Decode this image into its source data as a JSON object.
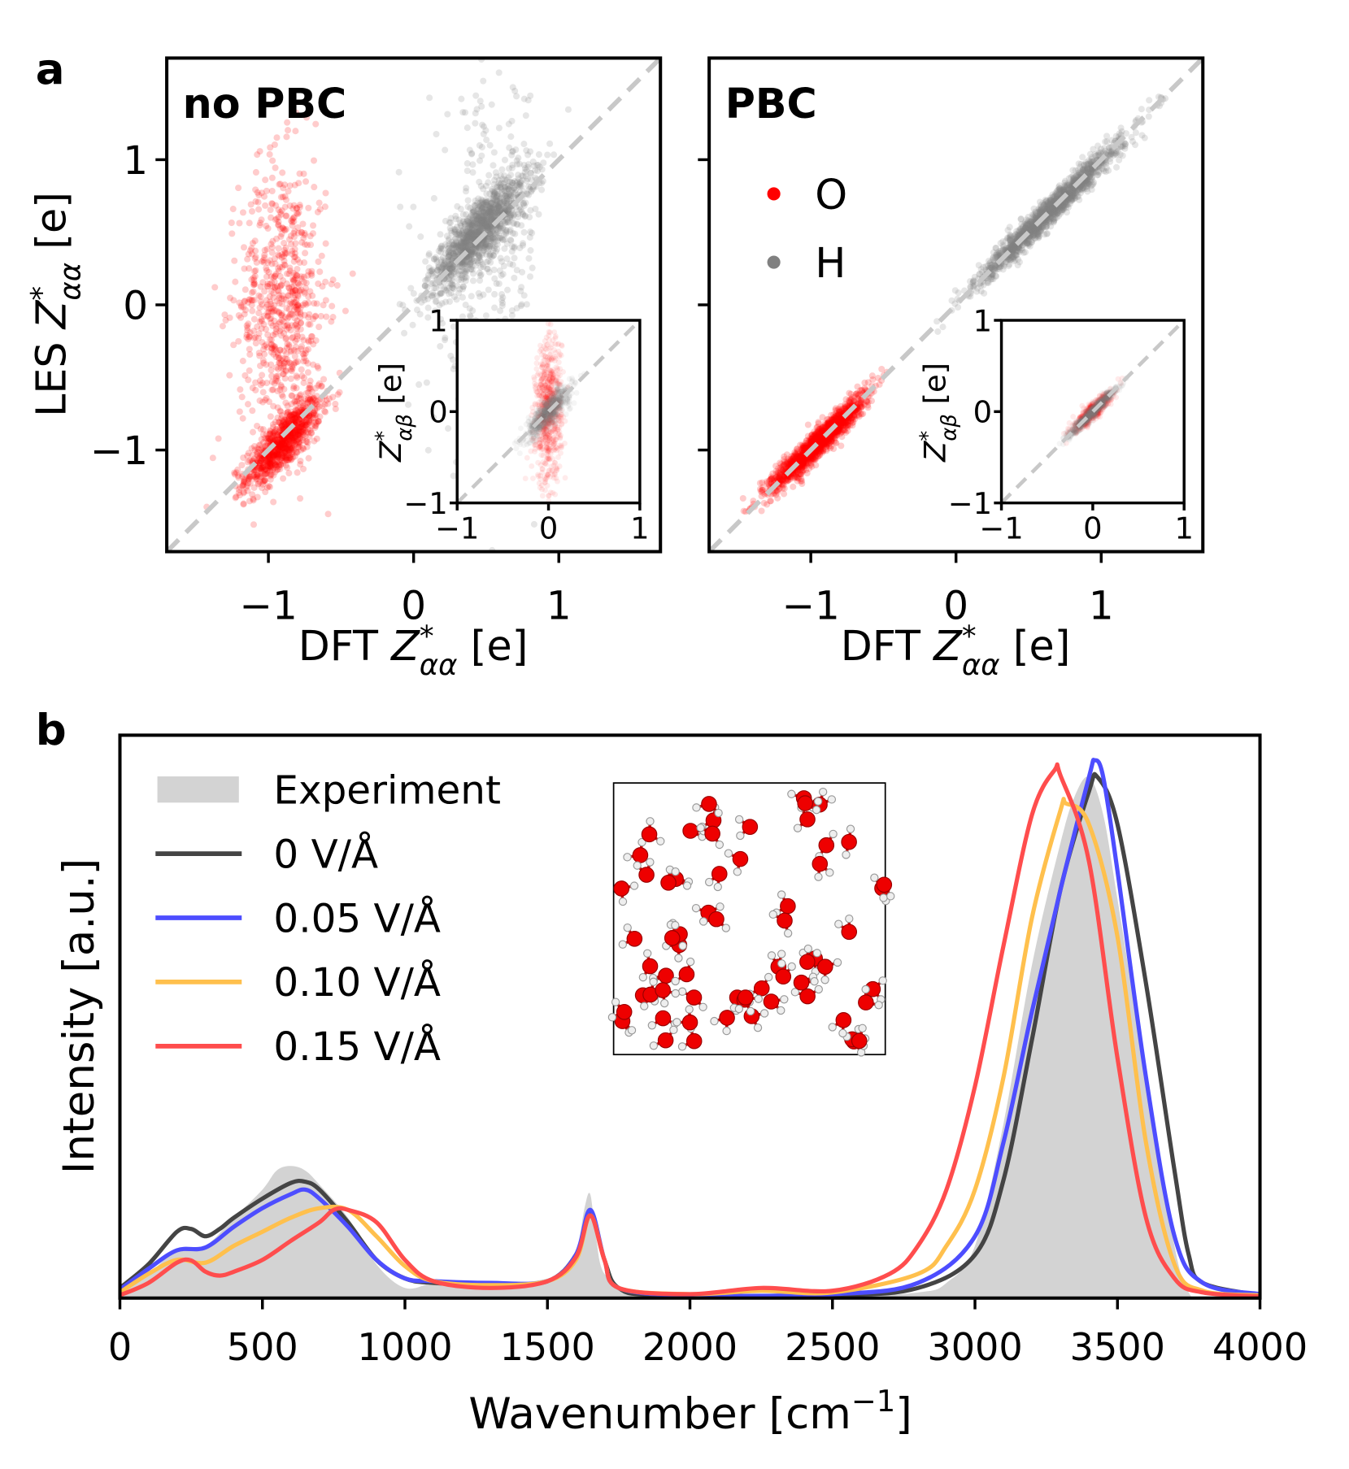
{
  "panel_a_label": "a",
  "panel_b_label": "b",
  "chart_data": [
    {
      "type": "scatter",
      "title": "no PBC",
      "xlabel": "DFT Z*αα [e]",
      "ylabel": "LES Z*αα [e]",
      "xlim": [
        -1.7,
        1.7
      ],
      "ylim": [
        -1.7,
        1.7
      ],
      "xticks": [
        "−1",
        "0",
        "1"
      ],
      "yticks": [
        "−1",
        "0",
        "1"
      ],
      "reference_line": "y = x (dashed, light gray)",
      "grid": false,
      "series": [
        {
          "name": "O",
          "color": "#ff0000",
          "clusters": [
            {
              "x_mean": -0.9,
              "y_mean": -0.95,
              "x_std": 0.13,
              "y_std": 0.15,
              "corr": 0.8,
              "fraction": 0.55
            },
            {
              "x_mean": -0.9,
              "y_mean": 0.0,
              "x_std": 0.15,
              "y_std": 0.5,
              "corr": 0.0,
              "fraction": 0.45
            }
          ]
        },
        {
          "name": "H",
          "color": "#808080",
          "clusters": [
            {
              "x_mean": 0.45,
              "y_mean": 0.5,
              "x_std": 0.17,
              "y_std": 0.2,
              "corr": 0.85,
              "fraction": 0.8
            },
            {
              "x_mean": 0.5,
              "y_mean": 0.3,
              "x_std": 0.2,
              "y_std": 0.6,
              "corr": 0.2,
              "fraction": 0.2
            }
          ]
        }
      ],
      "inset": {
        "xlim": [
          -1,
          1
        ],
        "ylim": [
          -1,
          1
        ],
        "xticks": [
          "−1",
          "0",
          "1"
        ],
        "yticks": [
          "−1",
          "0",
          "1"
        ],
        "ylabel": "Z*αβ [e]",
        "series": [
          {
            "name": "O",
            "color": "#ff0000",
            "clusters": [
              {
                "x_mean": 0.0,
                "y_mean": 0.0,
                "x_std": 0.07,
                "y_std": 0.4,
                "corr": 0.1,
                "fraction": 1
              }
            ]
          },
          {
            "name": "H",
            "color": "#808080",
            "clusters": [
              {
                "x_mean": 0.0,
                "y_mean": 0.0,
                "x_std": 0.12,
                "y_std": 0.14,
                "corr": 0.85,
                "fraction": 1
              }
            ]
          }
        ]
      }
    },
    {
      "type": "scatter",
      "title": "PBC",
      "xlabel": "DFT Z*αα [e]",
      "ylabel": "",
      "xlim": [
        -1.7,
        1.7
      ],
      "ylim": [
        -1.7,
        1.7
      ],
      "xticks": [
        "−1",
        "0",
        "1"
      ],
      "yticks": [],
      "reference_line": "y = x (dashed, light gray)",
      "legend": {
        "placement": "upper-left",
        "entries": [
          {
            "label": "O",
            "color": "#ff0000"
          },
          {
            "label": "H",
            "color": "#808080"
          }
        ]
      },
      "grid": false,
      "series": [
        {
          "name": "O",
          "color": "#ff0000",
          "clusters": [
            {
              "x_mean": -0.95,
              "y_mean": -0.95,
              "x_std": 0.16,
              "y_std": 0.16,
              "corr": 0.95,
              "fraction": 1
            }
          ]
        },
        {
          "name": "H",
          "color": "#808080",
          "clusters": [
            {
              "x_mean": 0.65,
              "y_mean": 0.65,
              "x_std": 0.24,
              "y_std": 0.24,
              "corr": 0.98,
              "fraction": 1
            }
          ]
        }
      ],
      "inset": {
        "xlim": [
          -1,
          1
        ],
        "ylim": [
          -1,
          1
        ],
        "xticks": [
          "−1",
          "0",
          "1"
        ],
        "yticks": [
          "−1",
          "0",
          "1"
        ],
        "ylabel": "Z*αβ [e]",
        "series": [
          {
            "name": "O",
            "color": "#ff0000",
            "clusters": [
              {
                "x_mean": 0.0,
                "y_mean": 0.0,
                "x_std": 0.1,
                "y_std": 0.1,
                "corr": 0.9,
                "fraction": 1
              }
            ]
          },
          {
            "name": "H",
            "color": "#808080",
            "clusters": [
              {
                "x_mean": 0.0,
                "y_mean": 0.0,
                "x_std": 0.13,
                "y_std": 0.13,
                "corr": 0.97,
                "fraction": 1
              }
            ]
          }
        ]
      }
    },
    {
      "type": "line",
      "xlabel": "Wavenumber [cm⁻¹]",
      "ylabel": "Intensity [a.u.]",
      "xlim": [
        0,
        4000
      ],
      "ylim": [
        0,
        100
      ],
      "xticks": [
        0,
        500,
        1000,
        1500,
        2000,
        2500,
        3000,
        3500,
        4000
      ],
      "legend": {
        "placement": "upper-left"
      },
      "grid": false,
      "series": [
        {
          "name": "Experiment",
          "style": "area",
          "color": "#d3d3d3",
          "x": [
            0,
            100,
            200,
            300,
            400,
            500,
            550,
            600,
            650,
            700,
            800,
            900,
            1000,
            1100,
            1200,
            1400,
            1550,
            1600,
            1630,
            1650,
            1670,
            1700,
            1800,
            2000,
            2500,
            2800,
            2900,
            3000,
            3100,
            3200,
            3300,
            3350,
            3400,
            3450,
            3500,
            3600,
            3700,
            3750,
            3800,
            4000
          ],
          "y": [
            1,
            4.3,
            8.5,
            9.3,
            14.3,
            19.3,
            22.7,
            23.5,
            22.7,
            20.2,
            14.3,
            6,
            1.8,
            2.7,
            2.7,
            2.7,
            4.3,
            7.7,
            16,
            18.5,
            11,
            4.3,
            1,
            0.2,
            0.2,
            1,
            2.7,
            9.3,
            31,
            59.3,
            81,
            89.3,
            92.7,
            86,
            71,
            39.3,
            9.3,
            1,
            0,
            0
          ]
        },
        {
          "name": "0 V/Å",
          "color": "#444444",
          "x": [
            0,
            100,
            200,
            250,
            300,
            350,
            400,
            500,
            600,
            650,
            700,
            800,
            900,
            1000,
            1100,
            1300,
            1500,
            1600,
            1650,
            1700,
            1750,
            1900,
            2500,
            2800,
            3000,
            3100,
            3200,
            3300,
            3400,
            3430,
            3500,
            3600,
            3700,
            3750,
            3800,
            4000
          ],
          "y": [
            1.8,
            6,
            11.8,
            12.3,
            11,
            12.3,
            14.3,
            17.7,
            20.5,
            20.7,
            19.3,
            13.5,
            6.8,
            3.5,
            2.7,
            2.3,
            3,
            7.7,
            15.2,
            6.8,
            1.8,
            0.5,
            0.5,
            1.8,
            7.7,
            21,
            46,
            72.7,
            90.2,
            92.7,
            84.3,
            56,
            22.7,
            7.7,
            2.7,
            0.5
          ]
        },
        {
          "name": "0.05 V/Å",
          "color": "#4d4dff",
          "x": [
            0,
            100,
            200,
            300,
            400,
            500,
            600,
            650,
            700,
            800,
            900,
            1000,
            1100,
            1300,
            1500,
            1600,
            1650,
            1700,
            1750,
            2000,
            2500,
            2800,
            3000,
            3100,
            3200,
            3300,
            3400,
            3420,
            3450,
            3500,
            3600,
            3700,
            3800,
            4000
          ],
          "y": [
            1.5,
            5.2,
            8.5,
            9,
            12.7,
            16,
            18.5,
            19.3,
            17.7,
            12.7,
            6.8,
            3.5,
            3,
            2.7,
            3,
            7.7,
            15.7,
            6.8,
            1.8,
            0.5,
            0.7,
            2.7,
            11,
            27.7,
            51,
            72.7,
            92.7,
            95.7,
            92.7,
            76,
            39.3,
            11,
            2.7,
            0.7
          ]
        },
        {
          "name": "0.10 V/Å",
          "color": "#ffc04d",
          "x": [
            0,
            100,
            200,
            300,
            400,
            500,
            600,
            700,
            800,
            900,
            1000,
            1100,
            1300,
            1500,
            1600,
            1650,
            1700,
            1750,
            2000,
            2250,
            2500,
            2800,
            2900,
            3000,
            3100,
            3200,
            3300,
            3320,
            3400,
            3500,
            3600,
            3700,
            3800,
            4000
          ],
          "y": [
            1,
            4.3,
            6.8,
            6.3,
            9.3,
            11.8,
            14.3,
            16,
            15.7,
            11,
            5.7,
            3,
            2.3,
            3,
            6.8,
            14.7,
            6.8,
            1.8,
            0.7,
            1.3,
            1,
            4.3,
            9.3,
            19.3,
            39.3,
            67.7,
            86.8,
            88,
            84.3,
            64.3,
            27.7,
            6,
            1.3,
            0.5
          ]
        },
        {
          "name": "0.15 V/Å",
          "color": "#ff4d4d",
          "x": [
            0,
            100,
            200,
            250,
            300,
            350,
            400,
            500,
            600,
            700,
            750,
            800,
            900,
            1000,
            1100,
            1300,
            1500,
            1600,
            1650,
            1700,
            1750,
            2000,
            2250,
            2500,
            2700,
            2800,
            2900,
            3000,
            3100,
            3200,
            3280,
            3300,
            3400,
            3500,
            3600,
            3700,
            3800,
            4000
          ],
          "y": [
            0.5,
            2.7,
            6.3,
            6.7,
            4.7,
            4,
            4.7,
            6.8,
            10.2,
            13.5,
            15.7,
            15.7,
            13.5,
            6.8,
            3,
            1.8,
            3,
            7.3,
            14.7,
            6.8,
            1.8,
            0.7,
            1.8,
            1.3,
            4.3,
            9.3,
            19.3,
            37.7,
            62.7,
            86,
            94,
            93,
            77.7,
            42.7,
            14.3,
            3.5,
            1,
            0.3
          ]
        }
      ],
      "inset_image": "water molecules snapshot (red O, white H)"
    }
  ]
}
